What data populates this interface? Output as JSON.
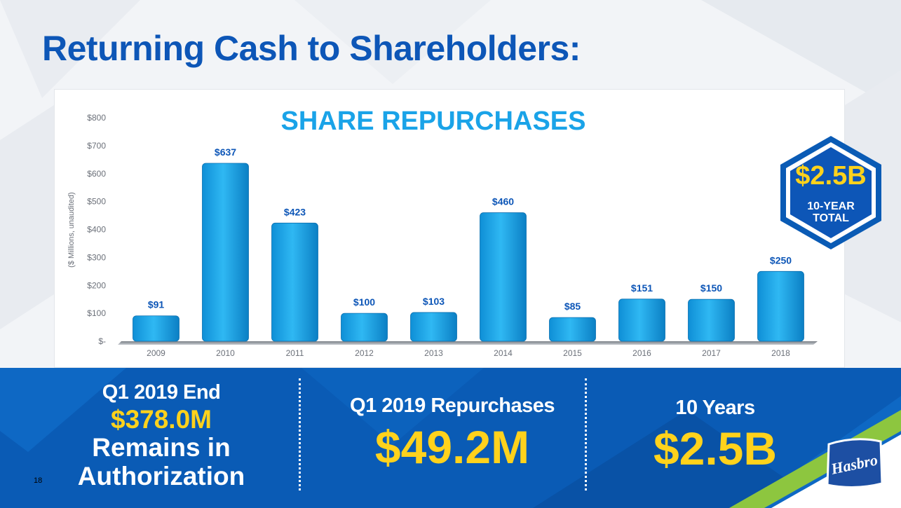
{
  "slide": {
    "title": "Returning Cash to Shareholders:",
    "page_number": "18"
  },
  "chart_data": {
    "type": "bar",
    "title": "SHARE REPURCHASES",
    "ylabel": "($ Millions, unaudited)",
    "xlabel": "",
    "categories": [
      "2009",
      "2010",
      "2011",
      "2012",
      "2013",
      "2014",
      "2015",
      "2016",
      "2017",
      "2018"
    ],
    "values": [
      91,
      637,
      423,
      100,
      103,
      460,
      85,
      151,
      150,
      250
    ],
    "value_labels": [
      "$91",
      "$637",
      "$423",
      "$100",
      "$103",
      "$460",
      "$85",
      "$151",
      "$150",
      "$250"
    ],
    "yticks": [
      0,
      100,
      200,
      300,
      400,
      500,
      600,
      700,
      800
    ],
    "ytick_labels": [
      "$-",
      "$100",
      "$200",
      "$300",
      "$400",
      "$500",
      "$600",
      "$700",
      "$800"
    ],
    "ylim": [
      0,
      800
    ],
    "grid": false,
    "legend": "none",
    "bar_color": "#1aa3e8"
  },
  "badge": {
    "value": "$2.5B",
    "label": "10-YEAR TOTAL"
  },
  "stats": {
    "authorization": {
      "line1": "Q1 2019 End",
      "value": "$378.0M",
      "line2": "Remains in",
      "line3": "Authorization"
    },
    "repurchases": {
      "label": "Q1 2019 Repurchases",
      "value": "$49.2M"
    },
    "ten_years": {
      "label": "10 Years",
      "value": "$2.5B"
    }
  },
  "logo": {
    "text": "Hasbro"
  },
  "colors": {
    "title_blue": "#0d56b7",
    "chart_title_blue": "#1aa3e8",
    "band_blue": "#0a5bb5",
    "highlight_yellow": "#ffd21c",
    "accent_green": "#8dc63f"
  }
}
